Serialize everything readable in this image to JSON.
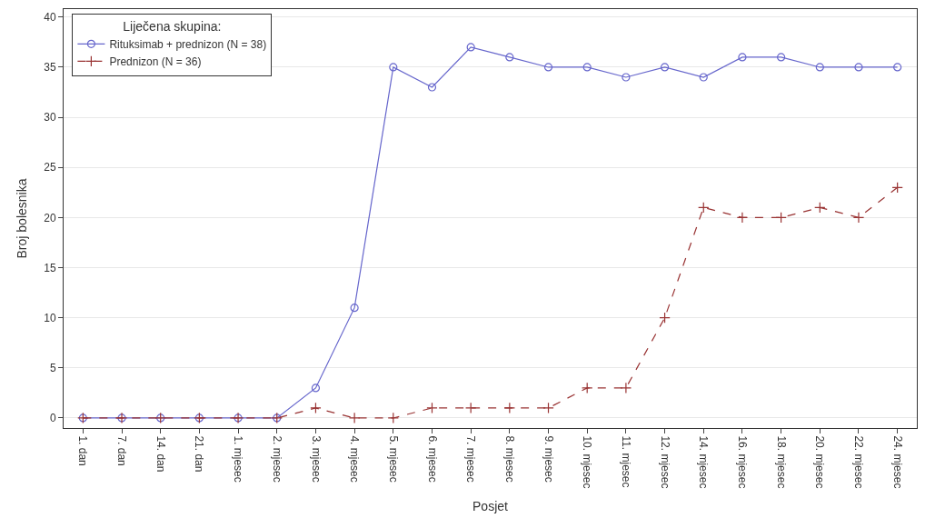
{
  "chart_data": {
    "type": "line",
    "xlabel": "Posjet",
    "ylabel": "Broj bolesnika",
    "legend_title": "Liječena skupina:",
    "categories": [
      "1. dan",
      "7. dan",
      "14. dan",
      "21. dan",
      "1. mjesec",
      "2. mjesec",
      "3. mjesec",
      "4. mjesec",
      "5. mjesec",
      "6. mjesec",
      "7. mjesec",
      "8. mjesec",
      "9. mjesec",
      "10. mjesec",
      "11. mjesec",
      "12. mjesec",
      "14. mjesec",
      "16. mjesec",
      "18. mjesec",
      "20. mjesec",
      "22. mjesec",
      "24. mjesec"
    ],
    "series": [
      {
        "name": "Rituksimab + prednizon (N = 38)",
        "color": "#6666cc",
        "marker": "circle",
        "line_style": "solid",
        "values": [
          0,
          0,
          0,
          0,
          0,
          0,
          3,
          11,
          35,
          33,
          37,
          36,
          35,
          35,
          34,
          35,
          34,
          36,
          36,
          35,
          35,
          35
        ]
      },
      {
        "name": "Prednizon (N = 36)",
        "color": "#993333",
        "marker": "cross",
        "line_style": "dashed",
        "values": [
          0,
          0,
          0,
          0,
          0,
          0,
          1,
          0,
          0,
          1,
          1,
          1,
          1,
          3,
          3,
          10,
          21,
          20,
          20,
          21,
          20,
          23
        ]
      }
    ],
    "ylim": [
      -1,
      40.8
    ],
    "yticks": [
      0,
      5,
      10,
      15,
      20,
      25,
      30,
      35,
      40
    ],
    "grid": "y",
    "legend": "top left"
  }
}
